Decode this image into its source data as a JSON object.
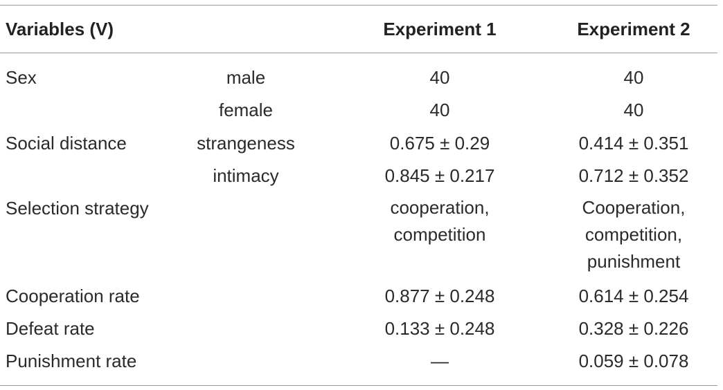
{
  "header": {
    "variables": "Variables (V)",
    "experiment1": "Experiment 1",
    "experiment2": "Experiment 2"
  },
  "rows": [
    {
      "variable": "Sex",
      "level": "male",
      "exp1": "40",
      "exp2": "40"
    },
    {
      "variable": "",
      "level": "female",
      "exp1": "40",
      "exp2": "40"
    },
    {
      "variable": "Social distance",
      "level": "strangeness",
      "exp1": "0.675 ± 0.29",
      "exp2": "0.414 ± 0.351"
    },
    {
      "variable": "",
      "level": "intimacy",
      "exp1": "0.845 ± 0.217",
      "exp2": "0.712 ± 0.352"
    },
    {
      "variable": "Selection strategy",
      "level": "",
      "exp1_lines": [
        "cooperation,",
        "competition"
      ],
      "exp2_lines": [
        "Cooperation,",
        "competition,",
        "punishment"
      ]
    },
    {
      "variable": "Cooperation rate",
      "level": "",
      "exp1": "0.877 ± 0.248",
      "exp2": "0.614 ± 0.254"
    },
    {
      "variable": "Defeat rate",
      "level": "",
      "exp1": "0.133 ± 0.248",
      "exp2": "0.328 ± 0.226"
    },
    {
      "variable": "Punishment rate",
      "level": "",
      "exp1": "—",
      "exp2": "0.059 ± 0.078"
    }
  ]
}
